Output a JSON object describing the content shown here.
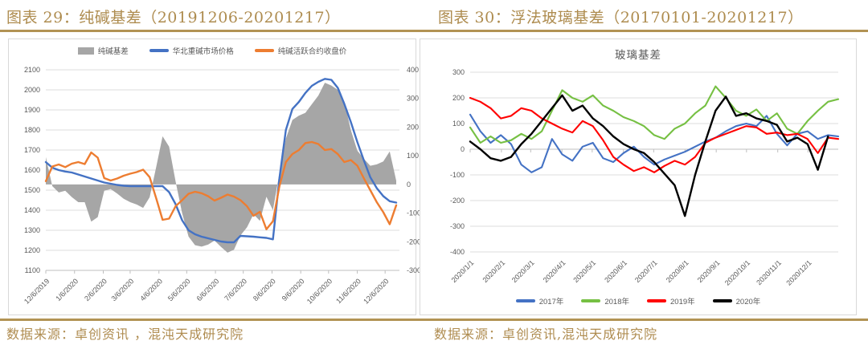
{
  "page": {
    "accent_gold": "#B29354",
    "title_color": "#AE8C4F",
    "grid_color": "#DCDCDC",
    "axis_color": "#BFBFBF",
    "label_color": "#595959"
  },
  "figure29": {
    "title": "图表 29：纯碱基差（20191206-20201217）",
    "source": "数据来源：卓创资讯 ，混沌天成研究院"
  },
  "figure30": {
    "title": "图表 30：浮法玻璃基差（20170101-20201217）",
    "source": "数据来源：卓创资讯,混沌天成研究院"
  },
  "chart_data": [
    {
      "type": "bar",
      "title": "",
      "note": "combo chart: gray basis area on right axis, two price lines on left axis; weekly points 2019-12-06 .. 2020-12-18",
      "ylabel_left": "",
      "ylabel_right": "",
      "left_ylim": [
        1100,
        2100
      ],
      "right_ylim": [
        -300,
        400
      ],
      "y_left_ticks": [
        2100,
        2000,
        1900,
        1800,
        1700,
        1600,
        1500,
        1400,
        1300,
        1200,
        1100
      ],
      "y_right_ticks": [
        400,
        300,
        200,
        100,
        0,
        -100,
        -200,
        -300
      ],
      "x_ticks": [
        {
          "label": "12/6/2019",
          "t": 0.0
        },
        {
          "label": "1/6/2020",
          "t": 0.082
        },
        {
          "label": "2/6/2020",
          "t": 0.164
        },
        {
          "label": "3/6/2020",
          "t": 0.2407
        },
        {
          "label": "4/6/2020",
          "t": 0.3228
        },
        {
          "label": "5/6/2020",
          "t": 0.4021
        },
        {
          "label": "6/6/2020",
          "t": 0.4841
        },
        {
          "label": "7/6/2020",
          "t": 0.5635
        },
        {
          "label": "8/6/2020",
          "t": 0.6455
        },
        {
          "label": "9/6/2020",
          "t": 0.7275
        },
        {
          "label": "10/6/2020",
          "t": 0.8069
        },
        {
          "label": "11/6/2020",
          "t": 0.8889
        },
        {
          "label": "12/6/2020",
          "t": 0.9683
        }
      ],
      "series": [
        {
          "name": "纯碱基差",
          "kind": "area",
          "axis": "right",
          "color": "#A6A6A6",
          "values": [
            95,
            -6,
            -28,
            -22,
            -44,
            -62,
            -62,
            -130,
            -114,
            -22,
            -16,
            -32,
            -50,
            -62,
            -70,
            -82,
            -45,
            60,
            168,
            132,
            10,
            -100,
            -182,
            -212,
            -217,
            -210,
            -196,
            -218,
            -238,
            -228,
            -178,
            -150,
            -104,
            -127,
            -43,
            -90,
            40,
            160,
            225,
            240,
            250,
            280,
            310,
            355,
            345,
            330,
            290,
            190,
            118,
            90,
            65,
            70,
            80,
            115,
            13
          ]
        },
        {
          "name": "华北重碱市场价格",
          "kind": "line",
          "axis": "left",
          "color": "#4472C4",
          "values": [
            1640,
            1612,
            1600,
            1593,
            1588,
            1578,
            1568,
            1558,
            1548,
            1538,
            1532,
            1526,
            1522,
            1520,
            1520,
            1520,
            1520,
            1520,
            1520,
            1490,
            1430,
            1350,
            1300,
            1280,
            1268,
            1260,
            1252,
            1244,
            1240,
            1240,
            1272,
            1270,
            1268,
            1265,
            1262,
            1255,
            1560,
            1800,
            1905,
            1940,
            1985,
            2020,
            2040,
            2055,
            2050,
            2010,
            1930,
            1840,
            1740,
            1650,
            1565,
            1510,
            1470,
            1445,
            1438
          ]
        },
        {
          "name": "纯碱活跃合约收盘价",
          "kind": "line",
          "axis": "left",
          "color": "#ED7D31",
          "values": [
            1545,
            1618,
            1628,
            1615,
            1632,
            1640,
            1630,
            1688,
            1662,
            1560,
            1548,
            1558,
            1572,
            1582,
            1590,
            1602,
            1565,
            1460,
            1352,
            1358,
            1420,
            1450,
            1482,
            1492,
            1485,
            1470,
            1448,
            1462,
            1478,
            1468,
            1450,
            1420,
            1372,
            1392,
            1305,
            1345,
            1520,
            1640,
            1680,
            1700,
            1735,
            1740,
            1730,
            1700,
            1705,
            1680,
            1640,
            1650,
            1622,
            1560,
            1500,
            1440,
            1390,
            1330,
            1425
          ]
        }
      ]
    },
    {
      "type": "line",
      "title": "玻璃基差",
      "ylim": [
        -400,
        300
      ],
      "y_ticks": [
        300,
        200,
        100,
        0,
        -100,
        -200,
        -300,
        -400
      ],
      "note": "four yearly overlay lines, ~10-day points Jan 1 .. Dec 31; 2020 line ends mid-December",
      "x_ticks": [
        {
          "label": "2020/1/1",
          "t": 0.0
        },
        {
          "label": "2020/2/1",
          "t": 0.0849
        },
        {
          "label": "2020/3/1",
          "t": 0.1644
        },
        {
          "label": "2020/4/1",
          "t": 0.2493
        },
        {
          "label": "2020/5/1",
          "t": 0.3315
        },
        {
          "label": "2020/6/1",
          "t": 0.4164
        },
        {
          "label": "2020/7/1",
          "t": 0.4986
        },
        {
          "label": "2020/8/1",
          "t": 0.5836
        },
        {
          "label": "2020/9/1",
          "t": 0.6685
        },
        {
          "label": "2020/10/1",
          "t": 0.7507
        },
        {
          "label": "2020/11/1",
          "t": 0.8356
        },
        {
          "label": "2020/12/1",
          "t": 0.9178
        }
      ],
      "series": [
        {
          "name": "2017年",
          "kind": "line",
          "color": "#4472C4",
          "values": [
            135,
            70,
            25,
            55,
            20,
            -60,
            -90,
            -70,
            40,
            -20,
            -45,
            10,
            25,
            -35,
            -50,
            -15,
            10,
            -30,
            -60,
            -40,
            -25,
            -10,
            10,
            30,
            45,
            70,
            90,
            100,
            90,
            130,
            60,
            15,
            60,
            70,
            40,
            55,
            50
          ]
        },
        {
          "name": "2018年",
          "kind": "line",
          "color": "#76C043",
          "values": [
            85,
            25,
            50,
            25,
            35,
            60,
            40,
            70,
            150,
            230,
            200,
            185,
            210,
            170,
            150,
            125,
            110,
            90,
            55,
            40,
            80,
            100,
            140,
            170,
            245,
            200,
            150,
            130,
            155,
            110,
            140,
            80,
            60,
            110,
            150,
            185,
            195
          ]
        },
        {
          "name": "2019年",
          "kind": "line",
          "color": "#FF0000",
          "values": [
            200,
            185,
            160,
            120,
            130,
            160,
            150,
            120,
            100,
            80,
            65,
            110,
            90,
            35,
            -30,
            -60,
            -85,
            -70,
            -90,
            -65,
            -45,
            -60,
            -30,
            25,
            45,
            60,
            75,
            90,
            85,
            60,
            65,
            55,
            60,
            40,
            -15,
            45,
            40
          ]
        },
        {
          "name": "2020年",
          "kind": "line",
          "color": "#000000",
          "values": [
            30,
            0,
            -35,
            -45,
            -30,
            20,
            60,
            110,
            160,
            210,
            150,
            170,
            120,
            90,
            50,
            20,
            0,
            -15,
            -50,
            -95,
            -140,
            -260,
            -100,
            30,
            150,
            205,
            130,
            140,
            120,
            110,
            95,
            30,
            45,
            20,
            -80,
            50,
            null
          ]
        }
      ]
    }
  ]
}
